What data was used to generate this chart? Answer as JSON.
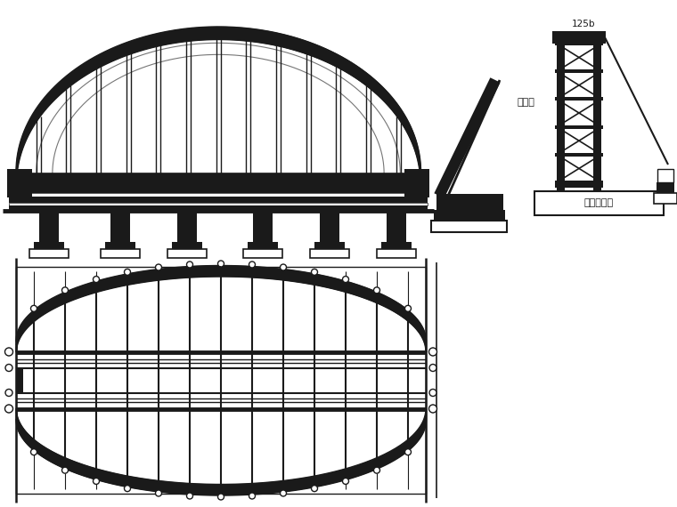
{
  "bg_color": "#ffffff",
  "lc": "#1a1a1a",
  "fc": "#1a1a1a",
  "label_hunitu": "混凝土基础",
  "label_jiandao": "剪刀撑",
  "label_125b": "125b",
  "figsize": [
    7.6,
    5.7
  ],
  "dpi": 100
}
